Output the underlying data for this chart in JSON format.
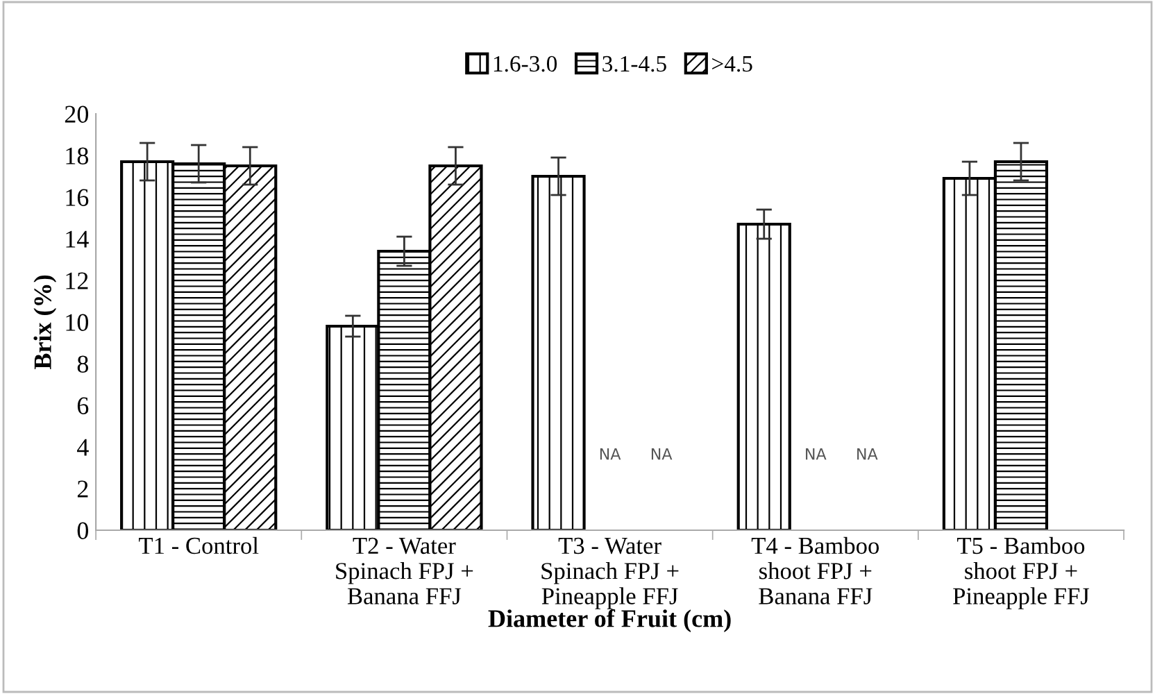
{
  "chart_data": {
    "type": "bar",
    "xlabel": "Diameter of Fruit (cm)",
    "ylabel": "Brix (%)",
    "categories": [
      "T1 - Control",
      "T2 - Water\nSpinach FPJ +\nBanana FFJ",
      "T3 - Water\nSpinach FPJ +\nPineapple FFJ",
      "T4 - Bamboo\nshoot FPJ +\nBanana FFJ",
      "T5 - Bamboo\nshoot FPJ +\nPineapple FFJ"
    ],
    "series": [
      {
        "name": "1.6-3.0",
        "color": "#000000",
        "values": [
          17.7,
          9.8,
          17.0,
          14.7,
          16.9
        ],
        "errors": [
          0.9,
          0.5,
          0.9,
          0.7,
          0.8
        ]
      },
      {
        "name": "3.1-4.5",
        "color": "#000000",
        "values": [
          17.6,
          13.4,
          null,
          null,
          17.7
        ],
        "errors": [
          0.9,
          0.7,
          null,
          null,
          0.9
        ]
      },
      {
        "name": ">4.5",
        "color": "#000000",
        "values": [
          17.5,
          17.5,
          null,
          null,
          null
        ],
        "errors": [
          0.9,
          0.9,
          null,
          null,
          null
        ]
      }
    ],
    "annotations": [
      "NA",
      "NA",
      "NA",
      "NA"
    ],
    "ylim": [
      0,
      20
    ],
    "yticks": [
      0,
      2,
      4,
      6,
      8,
      10,
      12,
      14,
      16,
      18,
      20
    ],
    "legend": "top",
    "grid": false
  }
}
